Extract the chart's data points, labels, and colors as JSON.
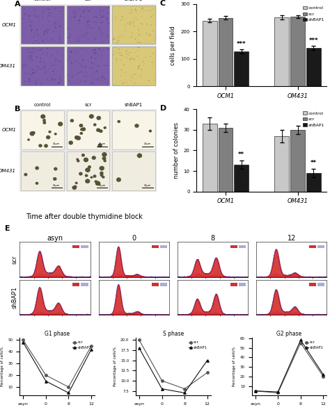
{
  "panel_C": {
    "ylabel": "cells per field",
    "ylim": [
      0,
      300
    ],
    "yticks": [
      0,
      100,
      200,
      300
    ],
    "groups": [
      "OCM1",
      "OM431"
    ],
    "control_vals": [
      240,
      252
    ],
    "scr_vals": [
      250,
      255
    ],
    "shBAP1_vals": [
      128,
      140
    ],
    "control_err": [
      7,
      8
    ],
    "scr_err": [
      6,
      5
    ],
    "shBAP1_err": [
      8,
      7
    ],
    "sig_labels": [
      "***",
      "***"
    ],
    "colors": [
      "#c8c8c8",
      "#808080",
      "#1a1a1a"
    ]
  },
  "panel_D": {
    "ylabel": "number of colonies",
    "ylim": [
      0,
      40
    ],
    "yticks": [
      0,
      10,
      20,
      30,
      40
    ],
    "groups": [
      "OCM1",
      "OM431"
    ],
    "control_vals": [
      33,
      27
    ],
    "scr_vals": [
      31,
      30
    ],
    "shBAP1_vals": [
      13,
      9
    ],
    "control_err": [
      3,
      3
    ],
    "scr_err": [
      2,
      2
    ],
    "shBAP1_err": [
      2,
      2
    ],
    "sig_labels": [
      "**",
      "**"
    ],
    "colors": [
      "#c8c8c8",
      "#808080",
      "#1a1a1a"
    ]
  },
  "panel_F": {
    "G1": {
      "title": "G1 phase",
      "ylabel": "Percentage of cells%",
      "scr_vals": [
        50,
        20,
        10,
        45
      ],
      "shBAP1_vals": [
        48,
        15,
        5,
        42
      ]
    },
    "S": {
      "title": "S phase",
      "ylabel": "Percentage of cells%",
      "scr_vals": [
        20,
        10,
        8,
        12
      ],
      "shBAP1_vals": [
        18,
        8,
        7,
        15
      ]
    },
    "G2": {
      "title": "G2 phase",
      "ylabel": "Percentage of cells%",
      "scr_vals": [
        5,
        3,
        55,
        20
      ],
      "shBAP1_vals": [
        5,
        4,
        58,
        22
      ]
    },
    "xticklabels": [
      "asyn",
      "0",
      "8",
      "12"
    ]
  },
  "legend_labels": [
    "control",
    "scr",
    "shBAP1"
  ],
  "flow_time_labels": [
    "asyn",
    "0",
    "8",
    "12"
  ],
  "row_labels_E": [
    "scr",
    "shBAP1"
  ],
  "flow_colors": {
    "fill": "#cc0000",
    "line": "#4444bb",
    "box1": "#cc3333",
    "box2": "#8888cc"
  }
}
